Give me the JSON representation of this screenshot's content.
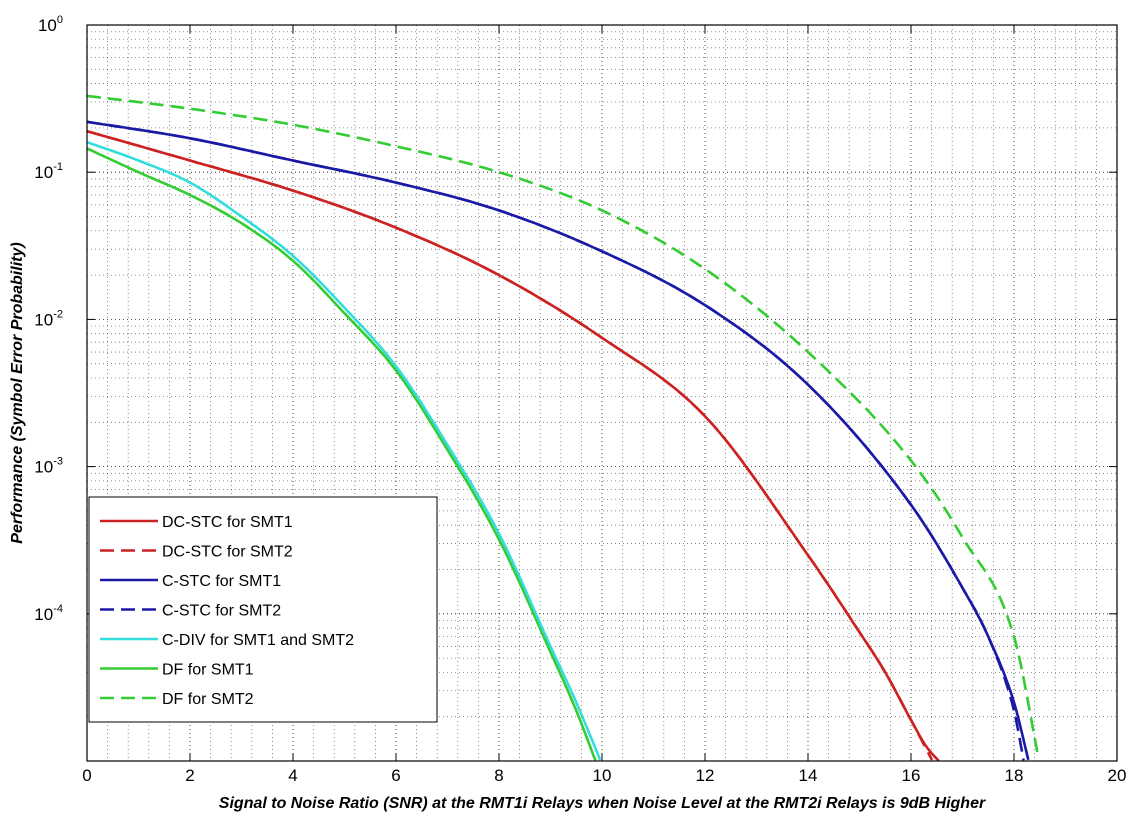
{
  "chart_data": {
    "type": "line",
    "xlabel": "Signal to Noise Ratio (SNR) at the RMT1i Relays when Noise Level at the RMT2i Relays is 9dB Higher",
    "ylabel": "Performance (Symbol Error Probability)",
    "xlim": [
      0,
      20
    ],
    "ylim": [
      1e-05,
      1
    ],
    "yscale": "log",
    "grid": "major and minor, dotted",
    "legend_position": "lower-left",
    "x_ticks": [
      "0",
      "2",
      "4",
      "6",
      "8",
      "10",
      "12",
      "14",
      "16",
      "18",
      "20"
    ],
    "y_ticks": [
      {
        "base": "10",
        "exp": "0",
        "value": 1
      },
      {
        "base": "10",
        "exp": "-1",
        "value": 0.1
      },
      {
        "base": "10",
        "exp": "-2",
        "value": 0.01
      },
      {
        "base": "10",
        "exp": "-3",
        "value": 0.001
      },
      {
        "base": "10",
        "exp": "-4",
        "value": 0.0001
      }
    ],
    "series": [
      {
        "name": "DC-STC for SMT1",
        "color": "#cc2222",
        "dash": "solid",
        "x": [
          0,
          2,
          4,
          6,
          8,
          10,
          12,
          14,
          15,
          15.5,
          16,
          16.3,
          16.6
        ],
        "y": [
          0.19,
          0.12,
          0.075,
          0.042,
          0.02,
          0.0075,
          0.0022,
          0.00025,
          7.5e-05,
          4e-05,
          1.9e-05,
          1.25e-05,
          9.5e-06
        ]
      },
      {
        "name": "DC-STC for SMT2",
        "color": "#cc2222",
        "dash": "dashed",
        "x": [
          0,
          2,
          4,
          6,
          8,
          10,
          12,
          14,
          15,
          15.5,
          16,
          16.3,
          16.45
        ],
        "y": [
          0.19,
          0.12,
          0.075,
          0.042,
          0.02,
          0.0075,
          0.0022,
          0.00025,
          7.5e-05,
          4e-05,
          1.9e-05,
          1.2e-05,
          9.5e-06
        ]
      },
      {
        "name": "C-STC for SMT1",
        "color": "#1a1aa6",
        "dash": "solid",
        "x": [
          0,
          2,
          4,
          6,
          8,
          10,
          12,
          14,
          16,
          17,
          17.5,
          18,
          18.3
        ],
        "y": [
          0.22,
          0.17,
          0.12,
          0.085,
          0.055,
          0.029,
          0.0125,
          0.0036,
          0.00055,
          0.00015,
          7e-05,
          2.5e-05,
          9.5e-06
        ]
      },
      {
        "name": "C-STC for SMT2",
        "color": "#1a1aa6",
        "dash": "dashed",
        "x": [
          0,
          2,
          4,
          6,
          8,
          10,
          12,
          14,
          16,
          17,
          17.5,
          18,
          18.2
        ],
        "y": [
          0.22,
          0.17,
          0.12,
          0.085,
          0.055,
          0.029,
          0.0125,
          0.0036,
          0.00055,
          0.00015,
          7e-05,
          2.2e-05,
          9.5e-06
        ]
      },
      {
        "name": "C-DIV for SMT1 and SMT2",
        "color": "#33dddd",
        "dash": "solid",
        "x": [
          0,
          1,
          2,
          3,
          4,
          5,
          6,
          7,
          8,
          9,
          9.5,
          10
        ],
        "y": [
          0.16,
          0.12,
          0.085,
          0.05,
          0.027,
          0.012,
          0.0048,
          0.0014,
          0.00035,
          6e-05,
          2.5e-05,
          9.5e-06
        ]
      },
      {
        "name": "DF for SMT1",
        "color": "#33cc33",
        "dash": "solid",
        "x": [
          0,
          1,
          2,
          3,
          4,
          5,
          6,
          7,
          8,
          9,
          9.5,
          9.9
        ],
        "y": [
          0.145,
          0.1,
          0.07,
          0.045,
          0.025,
          0.011,
          0.0045,
          0.0013,
          0.00032,
          5.5e-05,
          2.2e-05,
          9.5e-06
        ]
      },
      {
        "name": "DF for SMT2",
        "color": "#33cc33",
        "dash": "dashed",
        "x": [
          0,
          2,
          4,
          6,
          8,
          10,
          12,
          14,
          16,
          17,
          18,
          18.5
        ],
        "y": [
          0.33,
          0.27,
          0.21,
          0.15,
          0.1,
          0.055,
          0.022,
          0.006,
          0.0011,
          0.00033,
          7e-05,
          9.5e-06
        ]
      }
    ]
  }
}
